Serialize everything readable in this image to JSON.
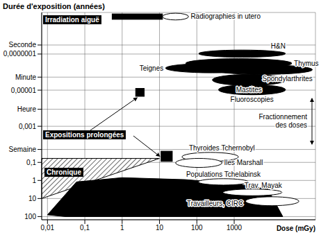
{
  "chart_data": {
    "type": "region",
    "title": "Durée d'exposition (années)",
    "x_label": "Dose (mGy)",
    "log": true,
    "grid": true,
    "xlim": [
      0.007,
      150000
    ],
    "xticks": [
      {
        "value": 0.01,
        "label": "0,01"
      },
      {
        "value": 0.1,
        "label": "0,1"
      },
      1,
      10,
      100,
      1000
    ],
    "ylim": [
      5e-10,
      150
    ],
    "yticks": [
      {
        "value": 3.17e-08,
        "label": "Seconde"
      },
      {
        "value": 1e-07,
        "label": "0,0000001"
      },
      {
        "value": 1.9e-06,
        "label": "Minute"
      },
      {
        "value": 1e-05,
        "label": "0,00001"
      },
      {
        "value": 0.000114,
        "label": "Heure"
      },
      {
        "value": 0.001,
        "label": "0,001"
      },
      {
        "value": 0.0192,
        "label": "Semaine"
      },
      {
        "value": 0.1,
        "label": "0,1"
      },
      1,
      10,
      100
    ],
    "box_labels": [
      "Irradiation aiguë",
      "Expositions prolongées",
      "Chronique"
    ],
    "side_label": "Fractionnement des doses",
    "regions": [
      {
        "type": "polygon",
        "color": "#000000",
        "line_style": "hatched",
        "points": [
          [
            0.007,
            0.06
          ],
          [
            10,
            0.06
          ],
          [
            0.007,
            10
          ]
        ]
      },
      {
        "type": "polygon",
        "color": "#000000",
        "points": [
          [
            0.01,
            80
          ],
          [
            0.06,
            1.2
          ],
          [
            1,
            0.7
          ],
          [
            50,
            0.9
          ],
          [
            1000,
            1.5
          ],
          [
            8000,
            3
          ],
          [
            20000,
            100
          ],
          [
            0.03,
            100
          ]
        ]
      },
      {
        "type": "rect",
        "color": "#000000",
        "x": [
          0.54,
          12
        ],
        "y": [
          6e-10,
          1.2e-09
        ]
      },
      {
        "type": "ellipse",
        "color": "#ffffff",
        "label": "Radiographies in utero",
        "x": [
          12,
          60
        ],
        "y": [
          5.5e-10,
          1.3e-09
        ]
      },
      {
        "type": "ellipse",
        "color": "#000000",
        "label": "H&N",
        "x": [
          112,
          23700
        ],
        "y": [
          6e-08,
          1.5e-07
        ]
      },
      {
        "type": "ellipse",
        "color": "#000000",
        "label": "Thymus",
        "x": [
          50,
          35000
        ],
        "y": [
          1.8e-07,
          6e-07
        ]
      },
      {
        "type": "ellipse",
        "color": "#000000",
        "label": "Teignes",
        "x": [
          14.5,
          4600
        ],
        "y": [
          3.3e-07,
          1.1e-06
        ]
      },
      {
        "type": "ellipse",
        "color": "#000000",
        "label": "Spondylarthrites",
        "x": [
          260,
          125000
        ],
        "y": [
          4e-07,
          1.35e-06
        ]
      },
      {
        "type": "ellipse",
        "color": "#000000",
        "label": "Mastites",
        "x": [
          260,
          23700
        ],
        "y": [
          1.35e-06,
          5.5e-06
        ]
      },
      {
        "type": "ellipse",
        "color": "#000000",
        "label": "Fluoroscopies",
        "x": [
          380,
          23700
        ],
        "y": [
          5e-06,
          1.8e-05
        ]
      },
      {
        "type": "rect",
        "color": "#000000",
        "x": [
          2.3,
          3.9
        ],
        "y": [
          8e-06,
          2.2e-05
        ]
      },
      {
        "type": "rect",
        "color": "#000000",
        "x": [
          11,
          22
        ],
        "y": [
          0.024,
          0.088
        ]
      },
      {
        "type": "ellipse",
        "color": "#ffffff",
        "label": "Thyroides Tchernobyl",
        "x": [
          40,
          1300
        ],
        "y": [
          0.028,
          0.088
        ]
      },
      {
        "type": "ellipse",
        "color": "#ffffff",
        "label": "Iles Marshall",
        "x": [
          27,
          470
        ],
        "y": [
          0.06,
          0.19
        ]
      },
      {
        "type": "ellipse",
        "color": "#ffffff",
        "label": "Populations Tchelabinsk",
        "x": [
          110,
          2400
        ],
        "y": [
          0.8,
          1.8
        ]
      },
      {
        "type": "ellipse",
        "color": "#ffffff",
        "label": "Trav. Mayak",
        "x": [
          500,
          19000
        ],
        "y": [
          3,
          7
        ]
      },
      {
        "type": "ellipse",
        "color": "#ffffff",
        "label": "Travailleurs, CIRC",
        "x": [
          2000,
          54000
        ],
        "y": [
          8,
          25
        ]
      }
    ]
  }
}
